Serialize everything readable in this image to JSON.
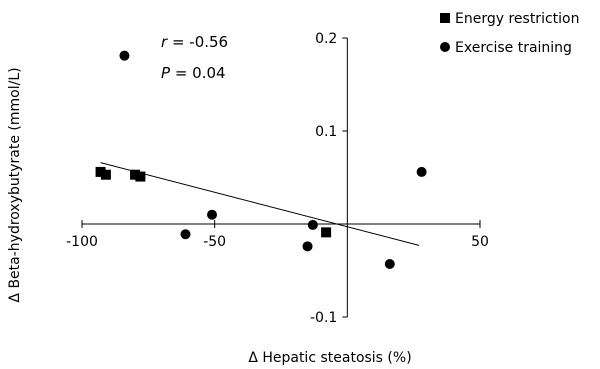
{
  "chart_data": {
    "type": "scatter",
    "xlabel": "Δ Hepatic steatosis (%)",
    "ylabel": "Δ Beta-hydroxybutyrate (mmol/L)",
    "xlim": [
      -100,
      50
    ],
    "ylim": [
      -0.1,
      0.2
    ],
    "x_ticks": [
      -100,
      -50,
      50
    ],
    "x_tick_labels": [
      "-100",
      "-50",
      "50"
    ],
    "y_ticks": [
      -0.1,
      0.1,
      0.2
    ],
    "y_tick_labels": [
      "-0.1",
      "0.1",
      "0.2"
    ],
    "grid": false,
    "legend_position": "top-right",
    "series": [
      {
        "name": "Energy restriction",
        "marker": "square",
        "color": "#000000",
        "points": [
          {
            "x": -93,
            "y": 0.056
          },
          {
            "x": -91,
            "y": 0.053
          },
          {
            "x": -80,
            "y": 0.053
          },
          {
            "x": -78,
            "y": 0.051
          },
          {
            "x": -8,
            "y": -0.009
          }
        ]
      },
      {
        "name": "Exercise training",
        "marker": "circle",
        "color": "#000000",
        "points": [
          {
            "x": -84,
            "y": 0.181
          },
          {
            "x": -61,
            "y": -0.011
          },
          {
            "x": -51,
            "y": 0.01
          },
          {
            "x": -13,
            "y": -0.001
          },
          {
            "x": -15,
            "y": -0.024
          },
          {
            "x": 16,
            "y": -0.043
          },
          {
            "x": 28,
            "y": 0.056
          }
        ]
      }
    ],
    "trendline": {
      "x1": -93,
      "y1": 0.066,
      "x2": 27,
      "y2": -0.023
    },
    "annotation": {
      "r_symbol": "r",
      "r_text": " = -0.56",
      "p_symbol": "P",
      "p_text": " = 0.04"
    }
  }
}
